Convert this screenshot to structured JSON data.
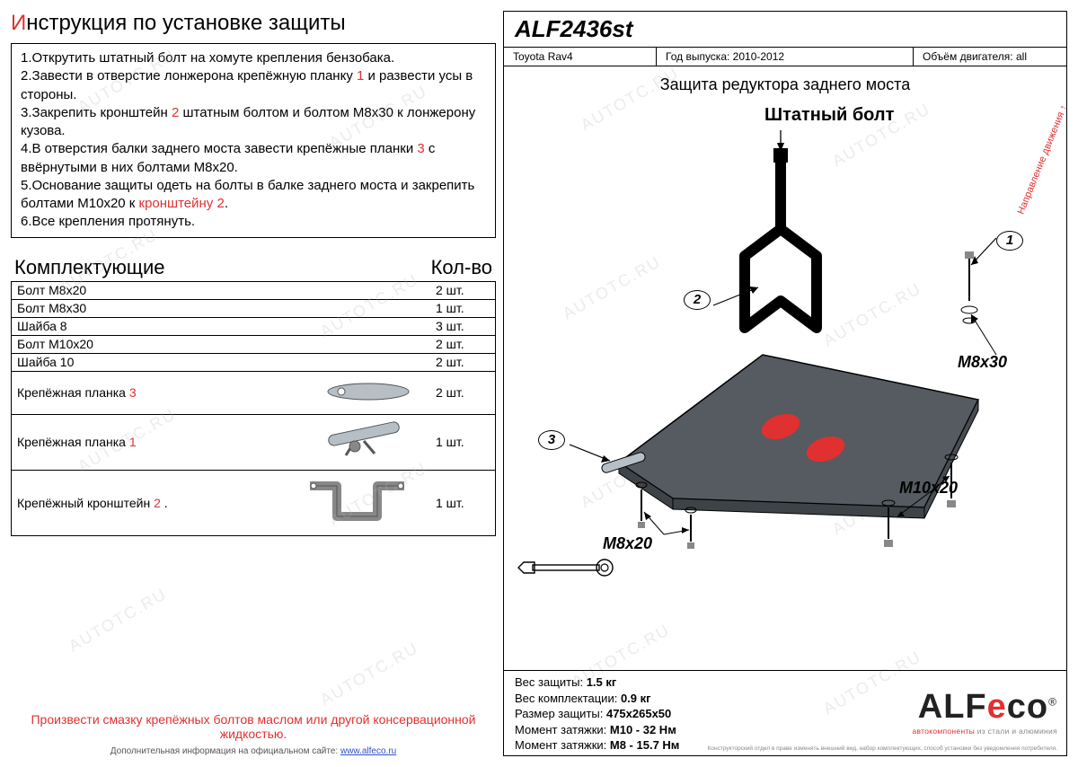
{
  "watermark_text": "AUTOTC.RU",
  "title_prefix": "И",
  "title_rest": "нструкция по установке защиты",
  "instructions": [
    {
      "n": "1.",
      "text": "Открутить штатный болт на хомуте крепления бензобака."
    },
    {
      "n": "2.",
      "text": "Завести в отверстие лонжерона крепёжную планку ",
      "ref": "1",
      "tail": " и развести усы в стороны."
    },
    {
      "n": "3.",
      "text": "Закрепить кронштейн ",
      "ref": "2",
      "tail": " штатным болтом и болтом М8х30 к лонжерону кузова."
    },
    {
      "n": "4.",
      "text": "В отверстия балки заднего моста завести крепёжные планки ",
      "ref": "3",
      "tail": " с ввёрнутыми в них болтами М8х20."
    },
    {
      "n": "5.",
      "text": "Основание защиты одеть на болты в балке заднего моста и закрепить болтами М10х20 к ",
      "ref2": "кронштейну 2",
      "tail": "."
    },
    {
      "n": "6.",
      "text": "Все крепления протянуть."
    }
  ],
  "components_title": "Комплектующие",
  "qty_title": "Кол-во",
  "components": [
    {
      "name": "Болт М8х20",
      "qty": "2 шт."
    },
    {
      "name": "Болт М8х30",
      "qty": "1 шт."
    },
    {
      "name": "Шайба 8",
      "qty": "3 шт."
    },
    {
      "name": "Болт М10х20",
      "qty": "2 шт."
    },
    {
      "name": "Шайба 10",
      "qty": "2 шт."
    }
  ],
  "components_illus": [
    {
      "name": "Крепёжная планка ",
      "ref": "3",
      "qty": "2 шт.",
      "h": "tall"
    },
    {
      "name": "Крепёжная планка ",
      "ref": "1",
      "qty": "1 шт.",
      "h": "taller"
    },
    {
      "name": "Крепёжный кронштейн ",
      "ref": "2",
      "suffix": "  .",
      "qty": "1 шт.",
      "h": "tallest"
    }
  ],
  "footer_note": "Произвести смазку крепёжных болтов маслом или другой консервационной жидкостью.",
  "footer_sub_pre": "Дополнительная информация на официальном сайте: ",
  "footer_link": "www.alfeco.ru",
  "product_code": "ALF2436st",
  "meta_vehicle_label": "Toyota Rav4",
  "meta_year_label": "Год выпуска: ",
  "meta_year_val": "2010-2012",
  "meta_engine_label": "Объём двигателя: ",
  "meta_engine_val": "all",
  "diagram_title": "Защита редуктора заднего моста",
  "direction_label": "Направление движения",
  "std_bolt": "Штатный болт",
  "callouts": {
    "c1": "1",
    "c2": "2",
    "c3": "3"
  },
  "dims": {
    "m8x30": "М8х30",
    "m10x20": "М10х20",
    "m8x20": "М8х20"
  },
  "specs": [
    {
      "label": "Вес защиты: ",
      "val": "1.5 кг"
    },
    {
      "label": "Вес комплектации: ",
      "val": "0.9 кг"
    },
    {
      "label": "Размер защиты: ",
      "val": "475х265х50"
    },
    {
      "label": "Момент затяжки: ",
      "val": "М10 - 32 Нм"
    },
    {
      "label": "Момент затяжки: ",
      "val": "М8 - 15.7 Нм"
    }
  ],
  "logo_main": "ALF",
  "logo_e": "e",
  "logo_co": "co",
  "logo_reg": "®",
  "logo_sub_red": "автокомпоненты",
  "logo_sub_rest": " из стали и алюминия",
  "fine_print": "Конструкторский отдел в праве изменять внешний вид, набор комплектующих, способ установки без уведомления потребителя.",
  "colors": {
    "red": "#e03030",
    "black": "#000000",
    "gray_part": "#b6bfc6",
    "plate": "#555b60"
  }
}
